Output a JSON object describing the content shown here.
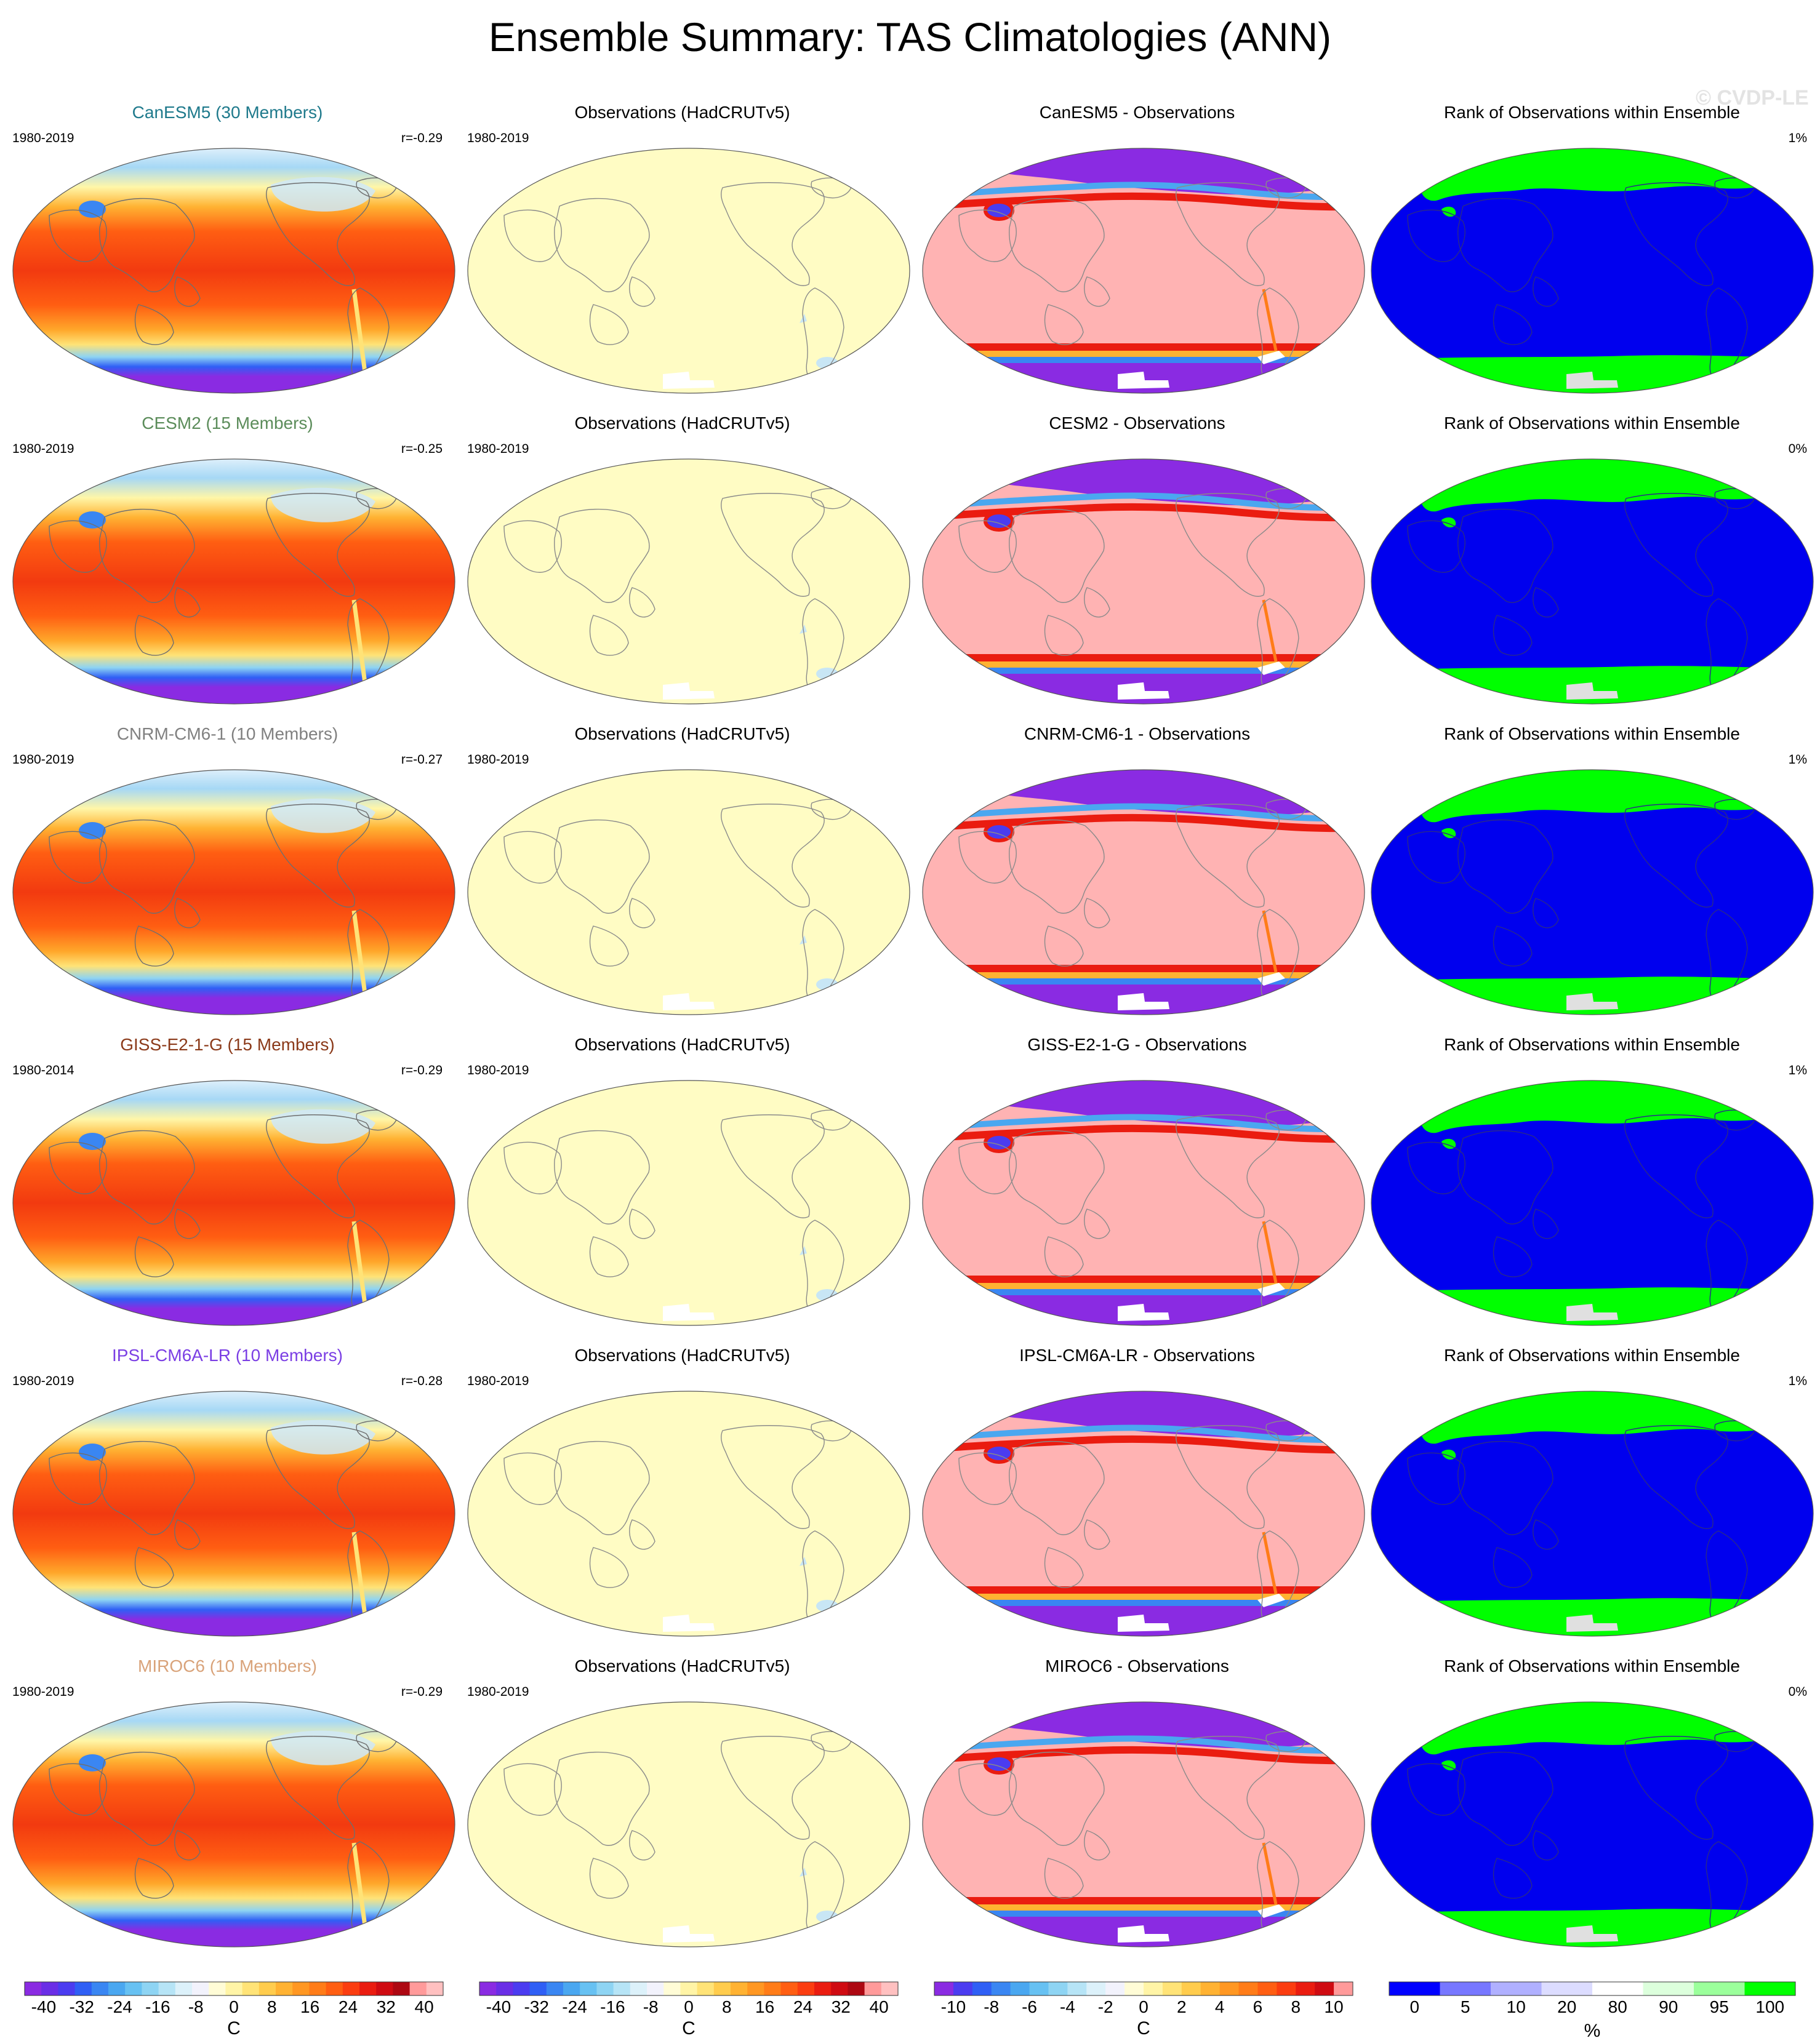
{
  "title": "Ensemble Summary: TAS Climatologies (ANN)",
  "watermark": "© CVDP-LE",
  "rows": [
    {
      "model_title": "CanESM5 (30 Members)",
      "model_color": "#1f7a8c",
      "period": "1980-2019",
      "r": "r=-0.29",
      "obs_title": "Observations (HadCRUTv5)",
      "obs_period": "1980-2019",
      "diff_title": "CanESM5 - Observations",
      "rank_title": "Rank of Observations within Ensemble",
      "rank_pct": "1%"
    },
    {
      "model_title": "CESM2 (15 Members)",
      "model_color": "#5b8c5a",
      "period": "1980-2019",
      "r": "r=-0.25",
      "obs_title": "Observations (HadCRUTv5)",
      "obs_period": "1980-2019",
      "diff_title": "CESM2 - Observations",
      "rank_title": "Rank of Observations within Ensemble",
      "rank_pct": "0%"
    },
    {
      "model_title": "CNRM-CM6-1 (10 Members)",
      "model_color": "#808080",
      "period": "1980-2019",
      "r": "r=-0.27",
      "obs_title": "Observations (HadCRUTv5)",
      "obs_period": "1980-2019",
      "diff_title": "CNRM-CM6-1 - Observations",
      "rank_title": "Rank of Observations within Ensemble",
      "rank_pct": "1%"
    },
    {
      "model_title": "GISS-E2-1-G (15 Members)",
      "model_color": "#8b3a1a",
      "period": "1980-2014",
      "r": "r=-0.29",
      "obs_title": "Observations (HadCRUTv5)",
      "obs_period": "1980-2019",
      "diff_title": "GISS-E2-1-G - Observations",
      "rank_title": "Rank of Observations within Ensemble",
      "rank_pct": "1%"
    },
    {
      "model_title": "IPSL-CM6A-LR (10 Members)",
      "model_color": "#7b3fe4",
      "period": "1980-2019",
      "r": "r=-0.28",
      "obs_title": "Observations (HadCRUTv5)",
      "obs_period": "1980-2019",
      "diff_title": "IPSL-CM6A-LR - Observations",
      "rank_title": "Rank of Observations within Ensemble",
      "rank_pct": "1%"
    },
    {
      "model_title": "MIROC6 (10 Members)",
      "model_color": "#d9a37a",
      "period": "1980-2019",
      "r": "r=-0.29",
      "obs_title": "Observations (HadCRUTv5)",
      "obs_period": "1980-2019",
      "diff_title": "MIROC6 - Observations",
      "rank_title": "Rank of Observations within Ensemble",
      "rank_pct": "0%"
    }
  ],
  "colorbars": {
    "clim": {
      "unit": "C",
      "labels": [
        "-40",
        "-32",
        "-24",
        "-16",
        "-8",
        "0",
        "8",
        "16",
        "24",
        "32",
        "40"
      ],
      "colors": [
        "#8a2be2",
        "#6a2ee6",
        "#4b3cf0",
        "#2f5ff5",
        "#3a86f2",
        "#4aa7f0",
        "#67c1f2",
        "#8ed4f3",
        "#b6e4f6",
        "#dcf1fa",
        "#f2f2fc",
        "#fffcd6",
        "#fff4a6",
        "#ffe377",
        "#ffcc4d",
        "#ffb232",
        "#ff9722",
        "#ff7c18",
        "#ff5e12",
        "#fb3d10",
        "#ea1c10",
        "#cf0b12",
        "#ad0812",
        "#ff9a9a",
        "#ffc0c0"
      ]
    },
    "obs": {
      "unit": "C",
      "labels": [
        "-40",
        "-32",
        "-24",
        "-16",
        "-8",
        "0",
        "8",
        "16",
        "24",
        "32",
        "40"
      ],
      "colors": [
        "#8a2be2",
        "#6a2ee6",
        "#4b3cf0",
        "#2f5ff5",
        "#3a86f2",
        "#4aa7f0",
        "#67c1f2",
        "#8ed4f3",
        "#b6e4f6",
        "#dcf1fa",
        "#f2f2fc",
        "#fffcd6",
        "#fff4a6",
        "#ffe377",
        "#ffcc4d",
        "#ffb232",
        "#ff9722",
        "#ff7c18",
        "#ff5e12",
        "#fb3d10",
        "#ea1c10",
        "#cf0b12",
        "#ad0812",
        "#ff9a9a",
        "#ffc0c0"
      ]
    },
    "diff": {
      "unit": "C",
      "labels": [
        "-10",
        "-8",
        "-6",
        "-4",
        "-2",
        "0",
        "2",
        "4",
        "6",
        "8",
        "10"
      ],
      "colors": [
        "#8a2be2",
        "#4b3cf0",
        "#2f5ff5",
        "#3a86f2",
        "#4aa7f0",
        "#67c1f2",
        "#8ed4f3",
        "#b6e4f6",
        "#dcf1fa",
        "#f2f2fc",
        "#fffcd6",
        "#fff4a6",
        "#ffe377",
        "#ffcc4d",
        "#ffb232",
        "#ff9722",
        "#ff7c18",
        "#ff5e12",
        "#fb3d10",
        "#ea1c10",
        "#cf0b12",
        "#ff9a9a"
      ]
    },
    "rank": {
      "unit": "%",
      "labels": [
        "0",
        "5",
        "10",
        "20",
        "80",
        "90",
        "95",
        "100"
      ],
      "colors": [
        "#0000ff",
        "#7777ff",
        "#b0b0ff",
        "#dcdcff",
        "#ffffff",
        "#dcffdc",
        "#9bff9b",
        "#00ff00"
      ]
    }
  },
  "colors": {
    "purple": "#8a2be2",
    "blue": "#0000ee",
    "green": "#00ff00",
    "obs_fill": "#fffcc4",
    "diff_fill": "#ffb3b3",
    "land_gray": "#e0e0e0",
    "coast": "#6f6f6f"
  }
}
